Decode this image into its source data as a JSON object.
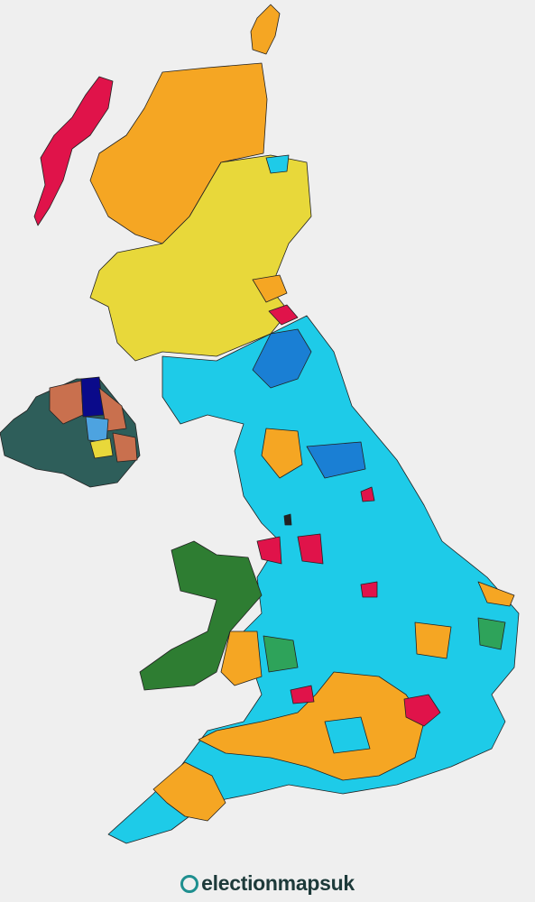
{
  "logo": {
    "text": "electionmapsuk"
  }
}
